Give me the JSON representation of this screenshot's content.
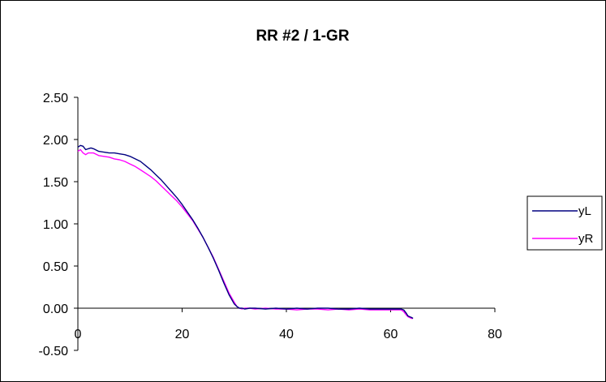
{
  "chart_data": {
    "type": "line",
    "title": "RR #2 / 1-GR",
    "xlabel": "",
    "ylabel": "",
    "xlim": [
      0,
      80
    ],
    "ylim": [
      -0.5,
      2.5
    ],
    "x_ticks": [
      "0",
      "20",
      "40",
      "60",
      "80"
    ],
    "y_ticks": [
      "2.50",
      "2.00",
      "1.50",
      "1.00",
      "0.50",
      "0.00",
      "-0.50"
    ],
    "grid": false,
    "legend_position": "right",
    "series": [
      {
        "name": "yL",
        "color": "#000080",
        "x": [
          0,
          0.5,
          1,
          1.5,
          2,
          2.5,
          3,
          4,
          5,
          6,
          7,
          8,
          9,
          10,
          11,
          12,
          13,
          14,
          15,
          16,
          17,
          18,
          19,
          20,
          21,
          22,
          23,
          24,
          25,
          26,
          27,
          28,
          29,
          30,
          30.5,
          31,
          31.5,
          32,
          33,
          34,
          36,
          38,
          40,
          42,
          44,
          46,
          48,
          50,
          52,
          54,
          56,
          58,
          60,
          62,
          62.5,
          63,
          63.3,
          63.6,
          64,
          64.3
        ],
        "y": [
          1.91,
          1.93,
          1.92,
          1.88,
          1.89,
          1.9,
          1.89,
          1.86,
          1.85,
          1.84,
          1.84,
          1.83,
          1.82,
          1.8,
          1.77,
          1.74,
          1.69,
          1.64,
          1.58,
          1.52,
          1.45,
          1.38,
          1.31,
          1.23,
          1.14,
          1.05,
          0.95,
          0.84,
          0.72,
          0.59,
          0.45,
          0.3,
          0.16,
          0.05,
          0.02,
          0.0,
          0.0,
          -0.01,
          0.0,
          0.0,
          -0.01,
          0.0,
          -0.01,
          0.0,
          -0.01,
          0.0,
          0.0,
          -0.01,
          -0.01,
          0.0,
          -0.01,
          -0.01,
          -0.01,
          -0.01,
          -0.02,
          -0.06,
          -0.09,
          -0.1,
          -0.11,
          -0.12
        ]
      },
      {
        "name": "yR",
        "color": "#ff00ff",
        "x": [
          0,
          0.5,
          1,
          1.5,
          2,
          3,
          4,
          5,
          6,
          7,
          8,
          9,
          10,
          11,
          12,
          13,
          14,
          15,
          16,
          17,
          18,
          19,
          20,
          21,
          22,
          23,
          24,
          25,
          26,
          27,
          28,
          29,
          30,
          30.5,
          31,
          31.5,
          32,
          33,
          34,
          36,
          38,
          40,
          42,
          44,
          46,
          48,
          50,
          52,
          54,
          56,
          58,
          60,
          62,
          62.5,
          63,
          63.3,
          63.6,
          64,
          64.3
        ],
        "y": [
          1.86,
          1.88,
          1.84,
          1.82,
          1.84,
          1.84,
          1.81,
          1.8,
          1.79,
          1.77,
          1.76,
          1.74,
          1.71,
          1.68,
          1.64,
          1.6,
          1.56,
          1.51,
          1.45,
          1.39,
          1.33,
          1.27,
          1.2,
          1.12,
          1.04,
          0.94,
          0.84,
          0.72,
          0.6,
          0.46,
          0.32,
          0.18,
          0.07,
          0.02,
          0.0,
          -0.01,
          0.0,
          0.0,
          -0.01,
          0.0,
          -0.01,
          -0.01,
          -0.02,
          -0.01,
          -0.01,
          -0.02,
          -0.01,
          -0.02,
          -0.01,
          -0.02,
          -0.02,
          -0.02,
          -0.02,
          -0.04,
          -0.08,
          -0.1,
          -0.11,
          -0.12,
          -0.12
        ]
      }
    ]
  }
}
